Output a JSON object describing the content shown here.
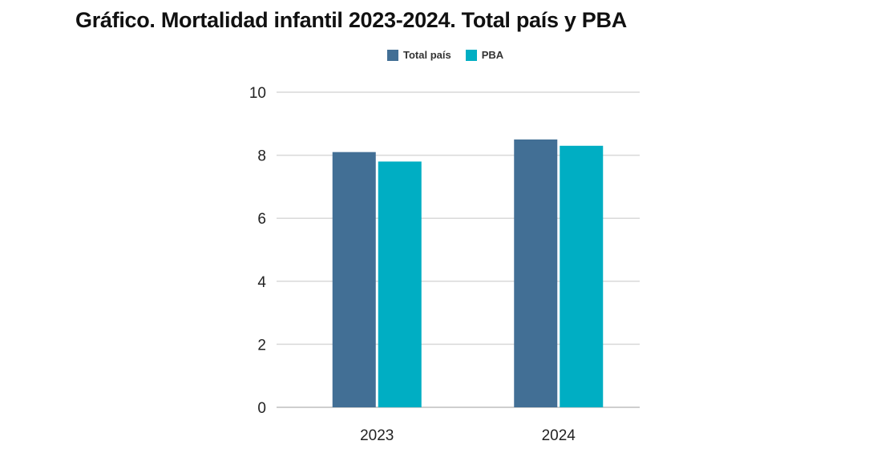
{
  "chart_data": {
    "type": "bar",
    "title": "Gráfico. Mortalidad infantil 2023-2024. Total país y PBA",
    "categories": [
      "2023",
      "2024"
    ],
    "series": [
      {
        "name": "Total país",
        "values": [
          8.1,
          8.5
        ],
        "color": "#426f95"
      },
      {
        "name": "PBA",
        "values": [
          7.8,
          8.3
        ],
        "color": "#00aec3"
      }
    ],
    "ylim": [
      0,
      10
    ],
    "yticks": [
      "0",
      "2",
      "4",
      "6",
      "8",
      "10"
    ],
    "xlabel": "",
    "ylabel": "",
    "grid": true,
    "legend_position": "top-center"
  },
  "colors": {
    "grid": "#d9d9d9",
    "axis": "#bfbfbf"
  }
}
